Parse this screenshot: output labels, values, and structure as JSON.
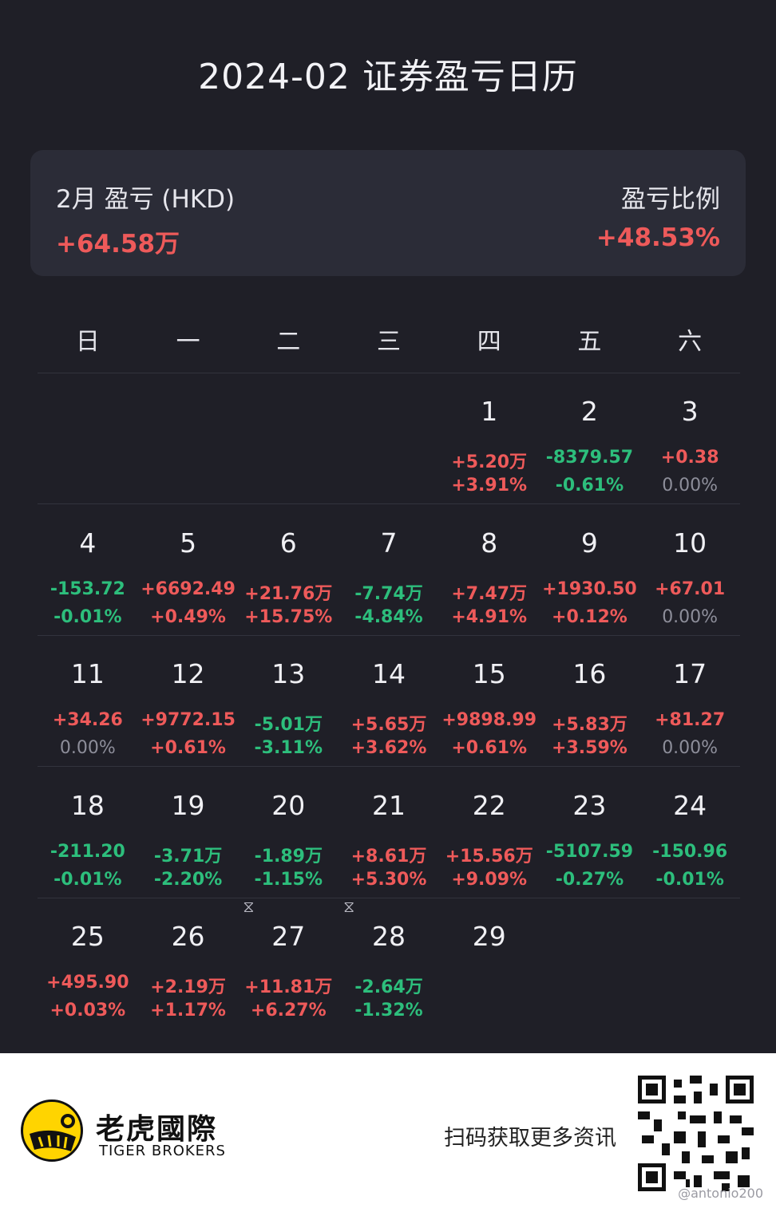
{
  "title": "2024-02 证券盈亏日历",
  "summary": {
    "month_label": "2月 盈亏 (HKD)",
    "month_value": "+64.58万",
    "ratio_label": "盈亏比例",
    "ratio_value": "+48.53%"
  },
  "weekdays": [
    "日",
    "一",
    "二",
    "三",
    "四",
    "五",
    "六"
  ],
  "calendar": [
    {
      "day": "",
      "amt": "",
      "pct": ""
    },
    {
      "day": "",
      "amt": "",
      "pct": ""
    },
    {
      "day": "",
      "amt": "",
      "pct": ""
    },
    {
      "day": "",
      "amt": "",
      "pct": ""
    },
    {
      "day": "1",
      "amt": "+5.20万",
      "pct": "+3.91%",
      "tone": "pos",
      "ptone": "pos"
    },
    {
      "day": "2",
      "amt": "-8379.57",
      "pct": "-0.61%",
      "tone": "neg",
      "ptone": "neg"
    },
    {
      "day": "3",
      "amt": "+0.38",
      "pct": "0.00%",
      "tone": "pos",
      "ptone": "zero"
    },
    {
      "day": "4",
      "amt": "-153.72",
      "pct": "-0.01%",
      "tone": "neg",
      "ptone": "neg"
    },
    {
      "day": "5",
      "amt": "+6692.49",
      "pct": "+0.49%",
      "tone": "pos",
      "ptone": "pos"
    },
    {
      "day": "6",
      "amt": "+21.76万",
      "pct": "+15.75%",
      "tone": "pos",
      "ptone": "pos"
    },
    {
      "day": "7",
      "amt": "-7.74万",
      "pct": "-4.84%",
      "tone": "neg",
      "ptone": "neg"
    },
    {
      "day": "8",
      "amt": "+7.47万",
      "pct": "+4.91%",
      "tone": "pos",
      "ptone": "pos"
    },
    {
      "day": "9",
      "amt": "+1930.50",
      "pct": "+0.12%",
      "tone": "pos",
      "ptone": "pos"
    },
    {
      "day": "10",
      "amt": "+67.01",
      "pct": "0.00%",
      "tone": "pos",
      "ptone": "zero"
    },
    {
      "day": "11",
      "amt": "+34.26",
      "pct": "0.00%",
      "tone": "pos",
      "ptone": "zero"
    },
    {
      "day": "12",
      "amt": "+9772.15",
      "pct": "+0.61%",
      "tone": "pos",
      "ptone": "pos"
    },
    {
      "day": "13",
      "amt": "-5.01万",
      "pct": "-3.11%",
      "tone": "neg",
      "ptone": "neg"
    },
    {
      "day": "14",
      "amt": "+5.65万",
      "pct": "+3.62%",
      "tone": "pos",
      "ptone": "pos"
    },
    {
      "day": "15",
      "amt": "+9898.99",
      "pct": "+0.61%",
      "tone": "pos",
      "ptone": "pos"
    },
    {
      "day": "16",
      "amt": "+5.83万",
      "pct": "+3.59%",
      "tone": "pos",
      "ptone": "pos"
    },
    {
      "day": "17",
      "amt": "+81.27",
      "pct": "0.00%",
      "tone": "pos",
      "ptone": "zero"
    },
    {
      "day": "18",
      "amt": "-211.20",
      "pct": "-0.01%",
      "tone": "neg",
      "ptone": "neg"
    },
    {
      "day": "19",
      "amt": "-3.71万",
      "pct": "-2.20%",
      "tone": "neg",
      "ptone": "neg"
    },
    {
      "day": "20",
      "amt": "-1.89万",
      "pct": "-1.15%",
      "tone": "neg",
      "ptone": "neg"
    },
    {
      "day": "21",
      "amt": "+8.61万",
      "pct": "+5.30%",
      "tone": "pos",
      "ptone": "pos"
    },
    {
      "day": "22",
      "amt": "+15.56万",
      "pct": "+9.09%",
      "tone": "pos",
      "ptone": "pos"
    },
    {
      "day": "23",
      "amt": "-5107.59",
      "pct": "-0.27%",
      "tone": "neg",
      "ptone": "neg"
    },
    {
      "day": "24",
      "amt": "-150.96",
      "pct": "-0.01%",
      "tone": "neg",
      "ptone": "neg"
    },
    {
      "day": "25",
      "amt": "+495.90",
      "pct": "+0.03%",
      "tone": "pos",
      "ptone": "pos"
    },
    {
      "day": "26",
      "amt": "+2.19万",
      "pct": "+1.17%",
      "tone": "pos",
      "ptone": "pos"
    },
    {
      "day": "27",
      "amt": "+11.81万",
      "pct": "+6.27%",
      "tone": "pos",
      "ptone": "pos",
      "marker": "hourglass-icon"
    },
    {
      "day": "28",
      "amt": "-2.64万",
      "pct": "-1.32%",
      "tone": "neg",
      "ptone": "neg",
      "marker": "hourglass-icon"
    },
    {
      "day": "29",
      "amt": "",
      "pct": ""
    },
    {
      "day": "",
      "amt": "",
      "pct": ""
    },
    {
      "day": "",
      "amt": "",
      "pct": ""
    }
  ],
  "colors": {
    "background": "#1f1f27",
    "card": "#2b2c37",
    "profit": "#ee5a5a",
    "loss": "#2dbe7c",
    "neutral": "#8d8e9a"
  },
  "footer": {
    "brand_cn": "老虎國際",
    "brand_en": "TIGER BROKERS",
    "scan_text": "扫码获取更多资讯",
    "qr_icon": "qr-code-icon",
    "watermark": "@antonio200"
  }
}
